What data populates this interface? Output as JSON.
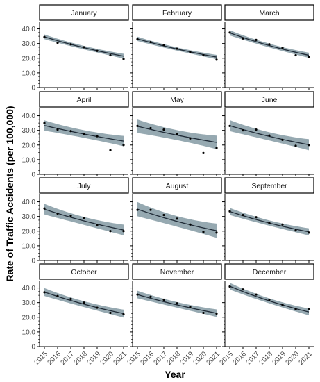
{
  "chart_data": {
    "type": "line",
    "chart_kind": "facet-grid scatter with fitted trend line and confidence band",
    "xlabel": "Year",
    "ylabel": "Rate of Traffic Accidents (per 100,000)",
    "x": [
      2015,
      2016,
      2017,
      2018,
      2019,
      2020,
      2021
    ],
    "x_tick_labels": [
      "2015",
      "2016",
      "2017",
      "2018",
      "2019",
      "2020",
      "2021"
    ],
    "y_tick_labels": [
      "0",
      "10.0",
      "20.0",
      "30.0",
      "40.0"
    ],
    "ylim": [
      0,
      45
    ],
    "grid": false,
    "colors": {
      "band": "#90a4ad",
      "line": "#1f2a36",
      "point": "#000000",
      "strip_border": "#000000"
    },
    "facets": [
      {
        "name": "January",
        "points": [
          34.5,
          30.5,
          29.5,
          27.5,
          25.0,
          22.0,
          19.5
        ],
        "fit_start": 34.6,
        "fit_end": 21.4,
        "band_halfwidth": 1.2
      },
      {
        "name": "February",
        "points": [
          33.0,
          31.0,
          29.0,
          26.5,
          24.0,
          22.0,
          19.0
        ],
        "fit_start": 33.2,
        "fit_end": 20.8,
        "band_halfwidth": 1.1
      },
      {
        "name": "March",
        "points": [
          37.5,
          33.5,
          32.5,
          29.5,
          27.0,
          22.0,
          21.0
        ],
        "fit_start": 37.3,
        "fit_end": 22.0,
        "band_halfwidth": 1.3
      },
      {
        "name": "April",
        "points": [
          35.0,
          30.5,
          29.5,
          27.5,
          26.0,
          16.5,
          20.0
        ],
        "fit_start": 33.3,
        "fit_end": 22.7,
        "band_halfwidth": 2.6
      },
      {
        "name": "May",
        "points": [
          33.0,
          31.5,
          30.5,
          27.5,
          24.5,
          14.5,
          18.0
        ],
        "fit_start": 32.8,
        "fit_end": 21.8,
        "band_halfwidth": 3.4
      },
      {
        "name": "June",
        "points": [
          33.0,
          30.0,
          30.5,
          26.5,
          23.5,
          19.5,
          20.0
        ],
        "fit_start": 33.2,
        "fit_end": 20.2,
        "band_halfwidth": 2.8
      },
      {
        "name": "July",
        "points": [
          35.5,
          32.0,
          30.5,
          29.0,
          24.0,
          20.0,
          20.0
        ],
        "fit_start": 35.0,
        "fit_end": 20.8,
        "band_halfwidth": 2.7
      },
      {
        "name": "August",
        "points": [
          34.5,
          34.5,
          31.0,
          28.5,
          24.5,
          19.5,
          19.0
        ],
        "fit_start": 35.0,
        "fit_end": 20.3,
        "band_halfwidth": 3.6
      },
      {
        "name": "September",
        "points": [
          33.5,
          31.0,
          29.5,
          25.5,
          24.5,
          20.5,
          19.0
        ],
        "fit_start": 33.4,
        "fit_end": 19.5,
        "band_halfwidth": 1.8
      },
      {
        "name": "October",
        "points": [
          37.0,
          34.5,
          32.5,
          30.0,
          26.5,
          23.0,
          22.0
        ],
        "fit_start": 37.2,
        "fit_end": 22.5,
        "band_halfwidth": 2.0
      },
      {
        "name": "November",
        "points": [
          35.5,
          34.0,
          32.0,
          29.5,
          27.0,
          23.0,
          22.5
        ],
        "fit_start": 35.5,
        "fit_end": 22.8,
        "band_halfwidth": 1.9
      },
      {
        "name": "December",
        "points": [
          41.0,
          39.0,
          35.5,
          32.0,
          28.5,
          25.5,
          25.5
        ],
        "fit_start": 41.2,
        "fit_end": 23.6,
        "band_halfwidth": 1.7
      }
    ]
  }
}
